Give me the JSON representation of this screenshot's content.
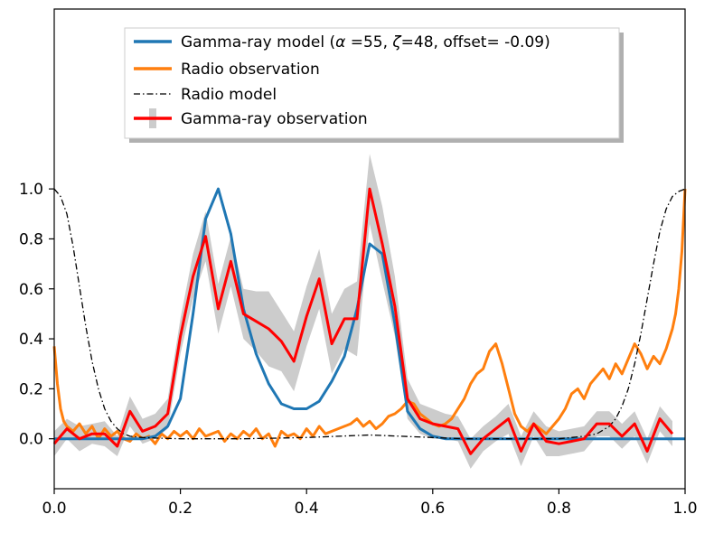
{
  "chart_data": {
    "type": "line",
    "title": "",
    "xlabel": "",
    "ylabel": "",
    "xlim": [
      0.0,
      1.0
    ],
    "ylim": [
      -0.2,
      1.72
    ],
    "xticks": [
      0.0,
      0.2,
      0.4,
      0.6,
      0.8,
      1.0
    ],
    "yticks": [
      0.0,
      0.2,
      0.4,
      0.6,
      0.8,
      1.0
    ],
    "xtick_labels": [
      "0.0",
      "0.2",
      "0.4",
      "0.6",
      "0.8",
      "1.0"
    ],
    "ytick_labels": [
      "0.0",
      "0.2",
      "0.4",
      "0.6",
      "0.8",
      "1.0"
    ],
    "grid": false,
    "legend": {
      "placement": "upper-center",
      "entries": [
        {
          "prefix": "Gamma-ray model (",
          "alpha_symbol": "α",
          "alpha_text": " =55, ",
          "zeta_symbol": "ζ",
          "zeta_text": "=48, offset= -0.09)"
        },
        {
          "label": "Radio observation"
        },
        {
          "label": "Radio model"
        },
        {
          "label": "Gamma-ray observation"
        }
      ]
    },
    "colors": {
      "gamma_model": "#1f77b4",
      "radio_obs": "#ff7f0e",
      "radio_model": "#000000",
      "gamma_obs": "#ff0000",
      "error_band": "#cccccc"
    },
    "series": [
      {
        "name": "Gamma-ray model",
        "x": [
          0.0,
          0.02,
          0.04,
          0.06,
          0.08,
          0.1,
          0.12,
          0.14,
          0.16,
          0.18,
          0.2,
          0.22,
          0.24,
          0.26,
          0.28,
          0.3,
          0.32,
          0.34,
          0.36,
          0.38,
          0.4,
          0.42,
          0.44,
          0.46,
          0.48,
          0.5,
          0.52,
          0.54,
          0.56,
          0.58,
          0.6,
          0.62,
          0.64,
          0.66,
          0.7,
          0.8,
          0.9,
          1.0
        ],
        "y": [
          0.0,
          0.0,
          0.0,
          0.0,
          0.0,
          0.0,
          0.0,
          0.0,
          0.01,
          0.05,
          0.16,
          0.5,
          0.88,
          1.0,
          0.82,
          0.52,
          0.34,
          0.22,
          0.14,
          0.12,
          0.12,
          0.15,
          0.23,
          0.33,
          0.52,
          0.78,
          0.74,
          0.46,
          0.11,
          0.04,
          0.01,
          0.0,
          0.0,
          0.0,
          0.0,
          0.0,
          0.0,
          0.0
        ]
      },
      {
        "name": "Radio observation",
        "x": [
          0.0,
          0.005,
          0.01,
          0.015,
          0.02,
          0.03,
          0.04,
          0.05,
          0.06,
          0.07,
          0.08,
          0.09,
          0.1,
          0.11,
          0.12,
          0.13,
          0.14,
          0.15,
          0.16,
          0.17,
          0.18,
          0.19,
          0.2,
          0.21,
          0.22,
          0.23,
          0.24,
          0.25,
          0.26,
          0.27,
          0.28,
          0.29,
          0.3,
          0.31,
          0.32,
          0.33,
          0.34,
          0.35,
          0.36,
          0.37,
          0.38,
          0.39,
          0.4,
          0.41,
          0.42,
          0.43,
          0.44,
          0.45,
          0.46,
          0.47,
          0.48,
          0.49,
          0.5,
          0.51,
          0.52,
          0.53,
          0.54,
          0.55,
          0.56,
          0.57,
          0.58,
          0.59,
          0.6,
          0.61,
          0.62,
          0.63,
          0.64,
          0.65,
          0.66,
          0.67,
          0.68,
          0.69,
          0.7,
          0.71,
          0.72,
          0.73,
          0.74,
          0.75,
          0.76,
          0.77,
          0.78,
          0.79,
          0.8,
          0.81,
          0.82,
          0.83,
          0.84,
          0.85,
          0.86,
          0.87,
          0.88,
          0.89,
          0.9,
          0.91,
          0.92,
          0.93,
          0.94,
          0.95,
          0.96,
          0.97,
          0.98,
          0.985,
          0.99,
          0.995,
          1.0
        ],
        "y": [
          0.37,
          0.22,
          0.12,
          0.07,
          0.05,
          0.03,
          0.06,
          0.02,
          0.05,
          0.0,
          0.04,
          0.01,
          0.03,
          0.0,
          -0.01,
          0.02,
          0.0,
          0.01,
          -0.02,
          0.02,
          0.0,
          0.03,
          0.01,
          0.03,
          0.0,
          0.04,
          0.01,
          0.02,
          0.03,
          -0.01,
          0.02,
          0.0,
          0.03,
          0.01,
          0.04,
          0.0,
          0.02,
          -0.03,
          0.03,
          0.01,
          0.02,
          0.0,
          0.04,
          0.01,
          0.05,
          0.02,
          0.03,
          0.04,
          0.05,
          0.06,
          0.08,
          0.05,
          0.07,
          0.04,
          0.06,
          0.09,
          0.1,
          0.12,
          0.15,
          0.14,
          0.1,
          0.08,
          0.06,
          0.05,
          0.06,
          0.08,
          0.12,
          0.16,
          0.22,
          0.26,
          0.28,
          0.35,
          0.38,
          0.3,
          0.2,
          0.1,
          0.05,
          0.03,
          0.06,
          0.04,
          0.02,
          0.05,
          0.08,
          0.12,
          0.18,
          0.2,
          0.16,
          0.22,
          0.25,
          0.28,
          0.24,
          0.3,
          0.26,
          0.32,
          0.38,
          0.34,
          0.28,
          0.33,
          0.3,
          0.36,
          0.44,
          0.5,
          0.6,
          0.75,
          1.0
        ]
      },
      {
        "name": "Radio model",
        "x": [
          0.0,
          0.01,
          0.02,
          0.03,
          0.04,
          0.05,
          0.06,
          0.07,
          0.08,
          0.09,
          0.1,
          0.11,
          0.12,
          0.14,
          0.16,
          0.2,
          0.3,
          0.4,
          0.5,
          0.55,
          0.6,
          0.65,
          0.7,
          0.75,
          0.8,
          0.84,
          0.86,
          0.88,
          0.89,
          0.9,
          0.91,
          0.92,
          0.93,
          0.94,
          0.95,
          0.96,
          0.97,
          0.98,
          0.99,
          1.0
        ],
        "y": [
          1.0,
          0.97,
          0.9,
          0.77,
          0.61,
          0.45,
          0.31,
          0.2,
          0.12,
          0.07,
          0.04,
          0.02,
          0.01,
          0.005,
          0.003,
          0.0,
          0.0,
          0.005,
          0.015,
          0.01,
          0.005,
          0.0,
          0.0,
          0.0,
          0.0,
          0.01,
          0.02,
          0.05,
          0.08,
          0.13,
          0.2,
          0.3,
          0.42,
          0.56,
          0.7,
          0.83,
          0.92,
          0.97,
          0.99,
          1.0
        ]
      },
      {
        "name": "Gamma-ray observation",
        "x": [
          0.0,
          0.02,
          0.04,
          0.06,
          0.08,
          0.1,
          0.12,
          0.14,
          0.16,
          0.18,
          0.2,
          0.22,
          0.24,
          0.26,
          0.28,
          0.3,
          0.32,
          0.34,
          0.36,
          0.38,
          0.4,
          0.42,
          0.44,
          0.46,
          0.48,
          0.5,
          0.52,
          0.54,
          0.56,
          0.58,
          0.6,
          0.62,
          0.64,
          0.66,
          0.68,
          0.7,
          0.72,
          0.74,
          0.76,
          0.78,
          0.8,
          0.82,
          0.84,
          0.86,
          0.88,
          0.9,
          0.92,
          0.94,
          0.96,
          0.98
        ],
        "y": [
          -0.02,
          0.04,
          0.0,
          0.02,
          0.02,
          -0.03,
          0.11,
          0.03,
          0.05,
          0.1,
          0.41,
          0.65,
          0.81,
          0.52,
          0.71,
          0.5,
          0.47,
          0.44,
          0.39,
          0.31,
          0.49,
          0.64,
          0.38,
          0.48,
          0.48,
          1.0,
          0.78,
          0.53,
          0.16,
          0.08,
          0.06,
          0.05,
          0.04,
          -0.06,
          0.0,
          0.04,
          0.08,
          -0.05,
          0.06,
          -0.01,
          -0.02,
          -0.01,
          0.0,
          0.06,
          0.06,
          0.01,
          0.06,
          -0.05,
          0.08,
          0.02
        ],
        "err": [
          0.05,
          0.04,
          0.05,
          0.04,
          0.05,
          0.04,
          0.06,
          0.05,
          0.05,
          0.06,
          0.07,
          0.09,
          0.1,
          0.1,
          0.1,
          0.1,
          0.12,
          0.15,
          0.12,
          0.12,
          0.12,
          0.12,
          0.12,
          0.12,
          0.15,
          0.14,
          0.15,
          0.12,
          0.08,
          0.06,
          0.06,
          0.05,
          0.05,
          0.06,
          0.05,
          0.05,
          0.06,
          0.06,
          0.05,
          0.06,
          0.05,
          0.05,
          0.05,
          0.05,
          0.05,
          0.05,
          0.05,
          0.05,
          0.05,
          0.05
        ]
      }
    ]
  }
}
